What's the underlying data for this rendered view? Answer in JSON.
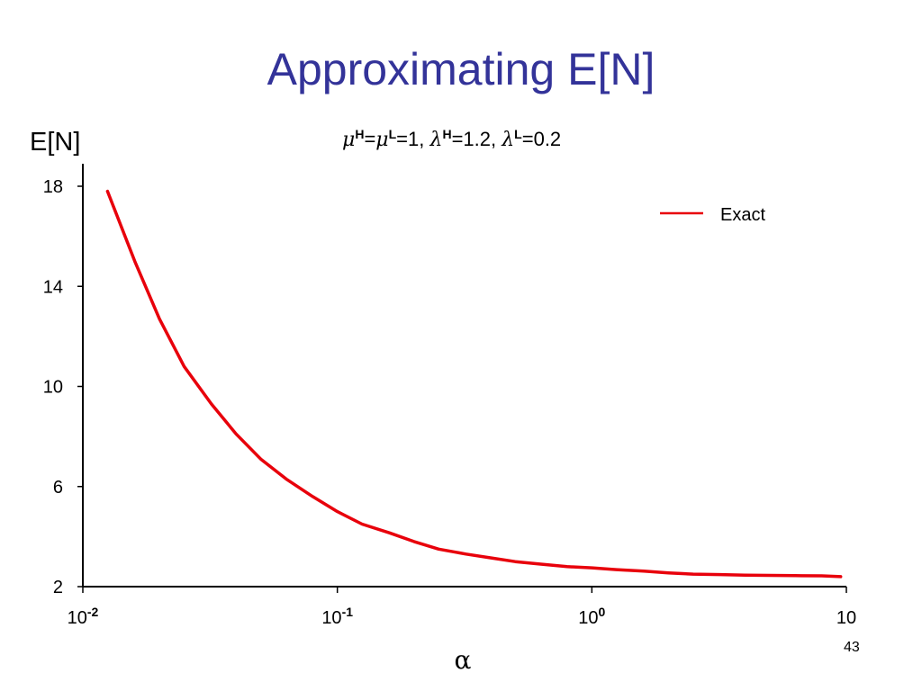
{
  "slide": {
    "title": "Approximating E[N]",
    "page_number": "43"
  },
  "parameters": {
    "mu": "μ",
    "lambda": "λ",
    "H": "H",
    "L": "L",
    "eq": "=",
    "mu_value": "=1, ",
    "lambdaH_value": "=1.2, ",
    "lambdaL_value": "=0.2"
  },
  "chart_data": {
    "type": "line",
    "ylabel": "E[N]",
    "xlabel": "α",
    "x_scale": "log",
    "xlim": [
      0.01,
      10
    ],
    "ylim": [
      2,
      19
    ],
    "x_ticks": [
      {
        "value": 0.01,
        "base": "10",
        "exp": "-2"
      },
      {
        "value": 0.1,
        "base": "10",
        "exp": "-1"
      },
      {
        "value": 1,
        "base": "10",
        "exp": "0"
      },
      {
        "value": 10,
        "base": "10",
        "exp": ""
      }
    ],
    "y_ticks": [
      2,
      6,
      10,
      14,
      18
    ],
    "grid": false,
    "legend_position": "top-right",
    "series": [
      {
        "name": "Exact",
        "color": "#e8000b",
        "x": [
          0.0125,
          0.016,
          0.02,
          0.025,
          0.032,
          0.04,
          0.05,
          0.063,
          0.08,
          0.1,
          0.125,
          0.16,
          0.2,
          0.25,
          0.32,
          0.4,
          0.5,
          0.63,
          0.8,
          1.0,
          1.25,
          1.6,
          2.0,
          2.5,
          3.2,
          4.0,
          5.0,
          6.3,
          8.0,
          9.5
        ],
        "y": [
          17.8,
          15.0,
          12.7,
          10.8,
          9.3,
          8.1,
          7.1,
          6.3,
          5.6,
          5.0,
          4.5,
          4.15,
          3.8,
          3.5,
          3.3,
          3.15,
          3.0,
          2.9,
          2.8,
          2.75,
          2.68,
          2.62,
          2.55,
          2.5,
          2.48,
          2.46,
          2.45,
          2.44,
          2.43,
          2.4
        ]
      }
    ]
  }
}
